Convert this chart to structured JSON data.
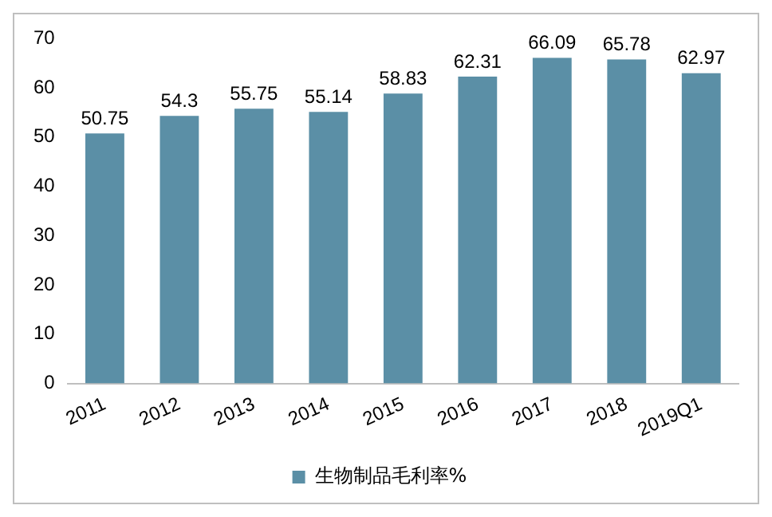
{
  "chart_data": {
    "type": "bar",
    "categories": [
      "2011",
      "2012",
      "2013",
      "2014",
      "2015",
      "2016",
      "2017",
      "2018",
      "2019Q1"
    ],
    "series": [
      {
        "name": "生物制品毛利率%",
        "color": "#5b8fa6",
        "values": [
          50.75,
          54.3,
          55.75,
          55.14,
          58.83,
          62.31,
          66.09,
          65.78,
          62.97
        ]
      }
    ],
    "ylim": [
      0,
      70
    ],
    "yticks": [
      0,
      10,
      20,
      30,
      40,
      50,
      60,
      70
    ],
    "grid": false,
    "legend": "bottom",
    "data_labels": true
  }
}
